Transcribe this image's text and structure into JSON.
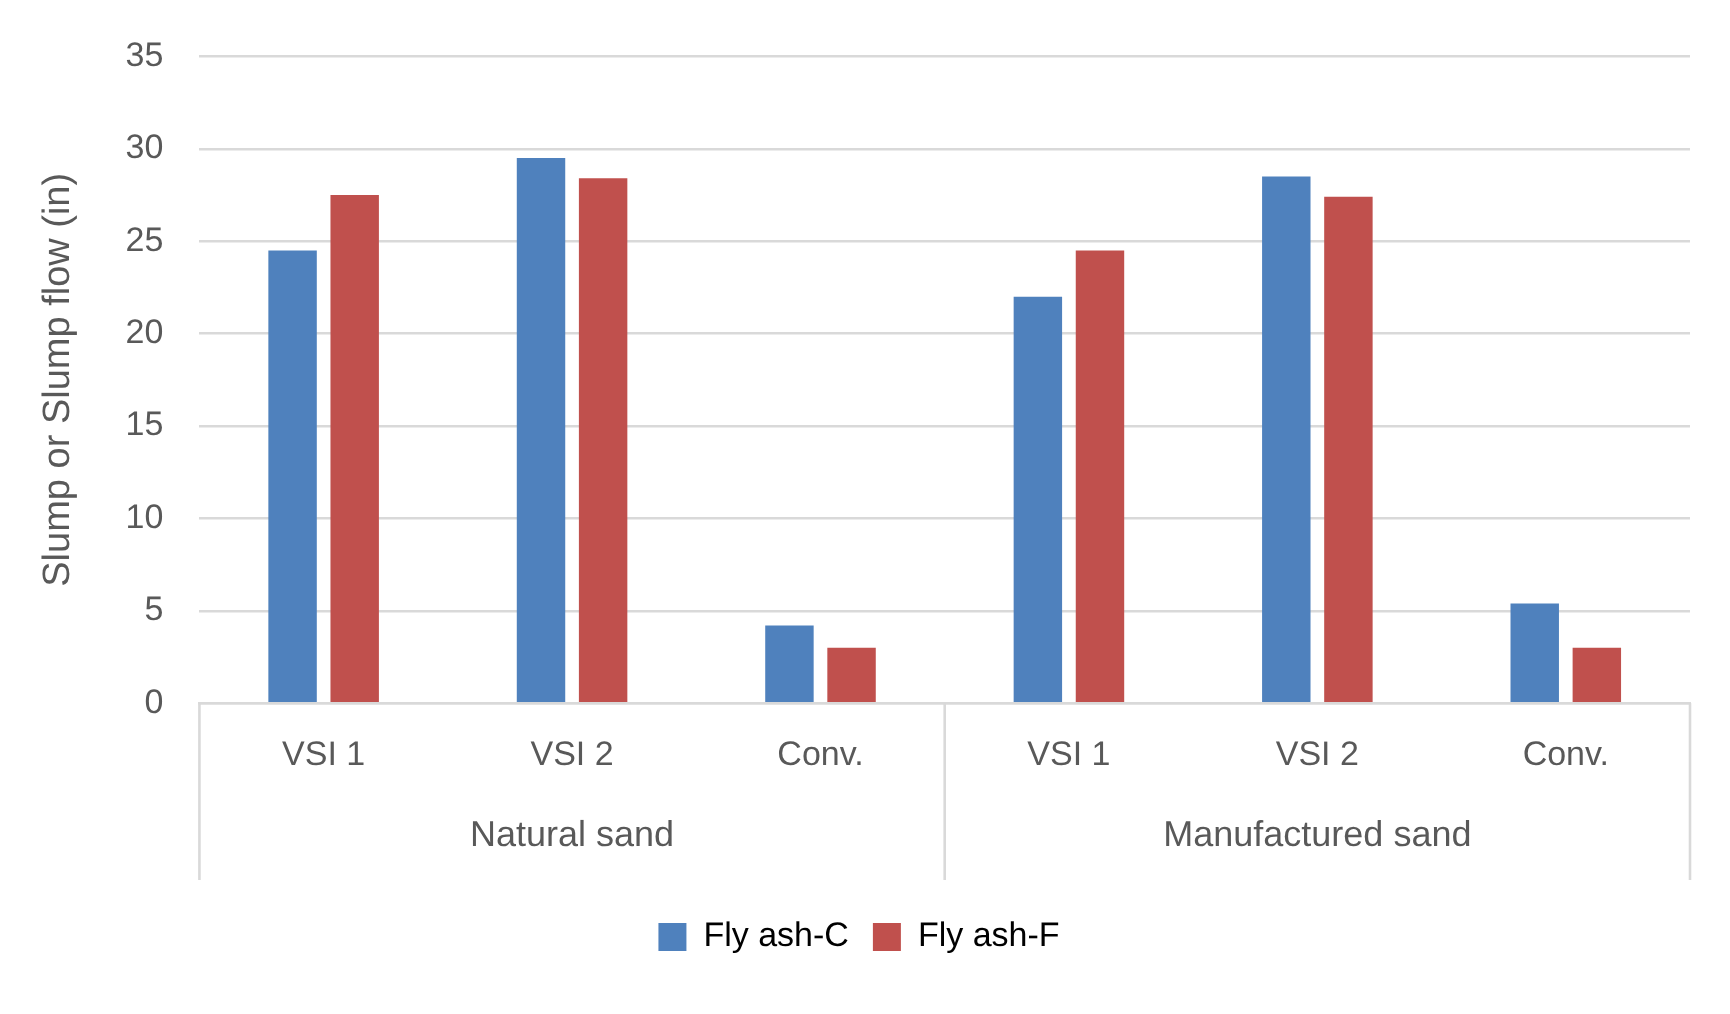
{
  "chart_data": {
    "type": "bar",
    "ylabel": "Slump or Slump flow (in)",
    "categories": [
      "VSI 1",
      "VSI 2",
      "Conv.",
      "VSI 1",
      "VSI 2",
      "Conv."
    ],
    "annotations": [
      "Natural sand",
      "Manufactured sand"
    ],
    "series": [
      {
        "name": "Fly ash-C",
        "color": "#4f81bd",
        "values": [
          24.5,
          29.5,
          4.2,
          22.0,
          28.5,
          5.4
        ]
      },
      {
        "name": "Fly ash-F",
        "color": "#c0504d",
        "values": [
          27.5,
          28.4,
          3.0,
          24.5,
          27.4,
          3.0
        ]
      }
    ],
    "ylim": [
      0,
      35
    ],
    "yticks": [
      0,
      5,
      10,
      15,
      20,
      25,
      30,
      35
    ],
    "grid": "y",
    "legend": "bottom"
  }
}
